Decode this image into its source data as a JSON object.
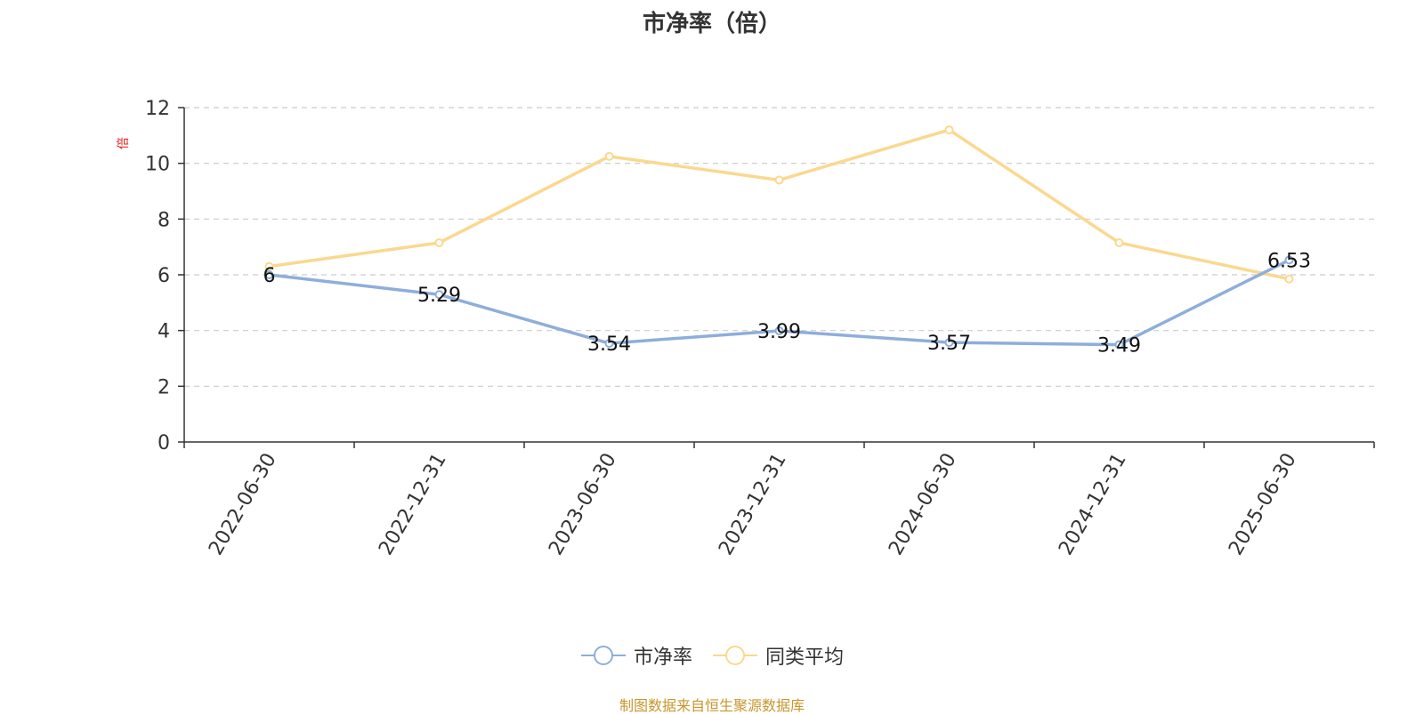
{
  "title": "市净率（倍）",
  "source": "制图数据来自恒生聚源数据库",
  "colors": {
    "series_pb": "#8eaedb",
    "series_avg": "#fbd88f",
    "grid": "#cccccc",
    "axis": "#333333",
    "unit": "#e02020",
    "source": "#c8962c"
  },
  "chart_data": {
    "type": "line",
    "title": "市净率（倍）",
    "x": [
      "2022-06-30",
      "2022-12-31",
      "2023-06-30",
      "2023-12-31",
      "2024-06-30",
      "2024-12-31",
      "2025-06-30"
    ],
    "ylabel": "倍",
    "ylim": [
      0,
      12
    ],
    "yticks": [
      0,
      2,
      4,
      6,
      8,
      10,
      12
    ],
    "grid": true,
    "legend_position": "bottom",
    "series": [
      {
        "name": "市净率",
        "values": [
          6,
          5.29,
          3.54,
          3.99,
          3.57,
          3.49,
          6.53
        ],
        "labels": [
          "6",
          "5.29",
          "3.54",
          "3.99",
          "3.57",
          "3.49",
          "6.53"
        ],
        "color": "#8eaedb"
      },
      {
        "name": "同类平均",
        "values": [
          6.3,
          7.15,
          10.25,
          9.4,
          11.2,
          7.15,
          5.85
        ],
        "color": "#fbd88f"
      }
    ]
  }
}
